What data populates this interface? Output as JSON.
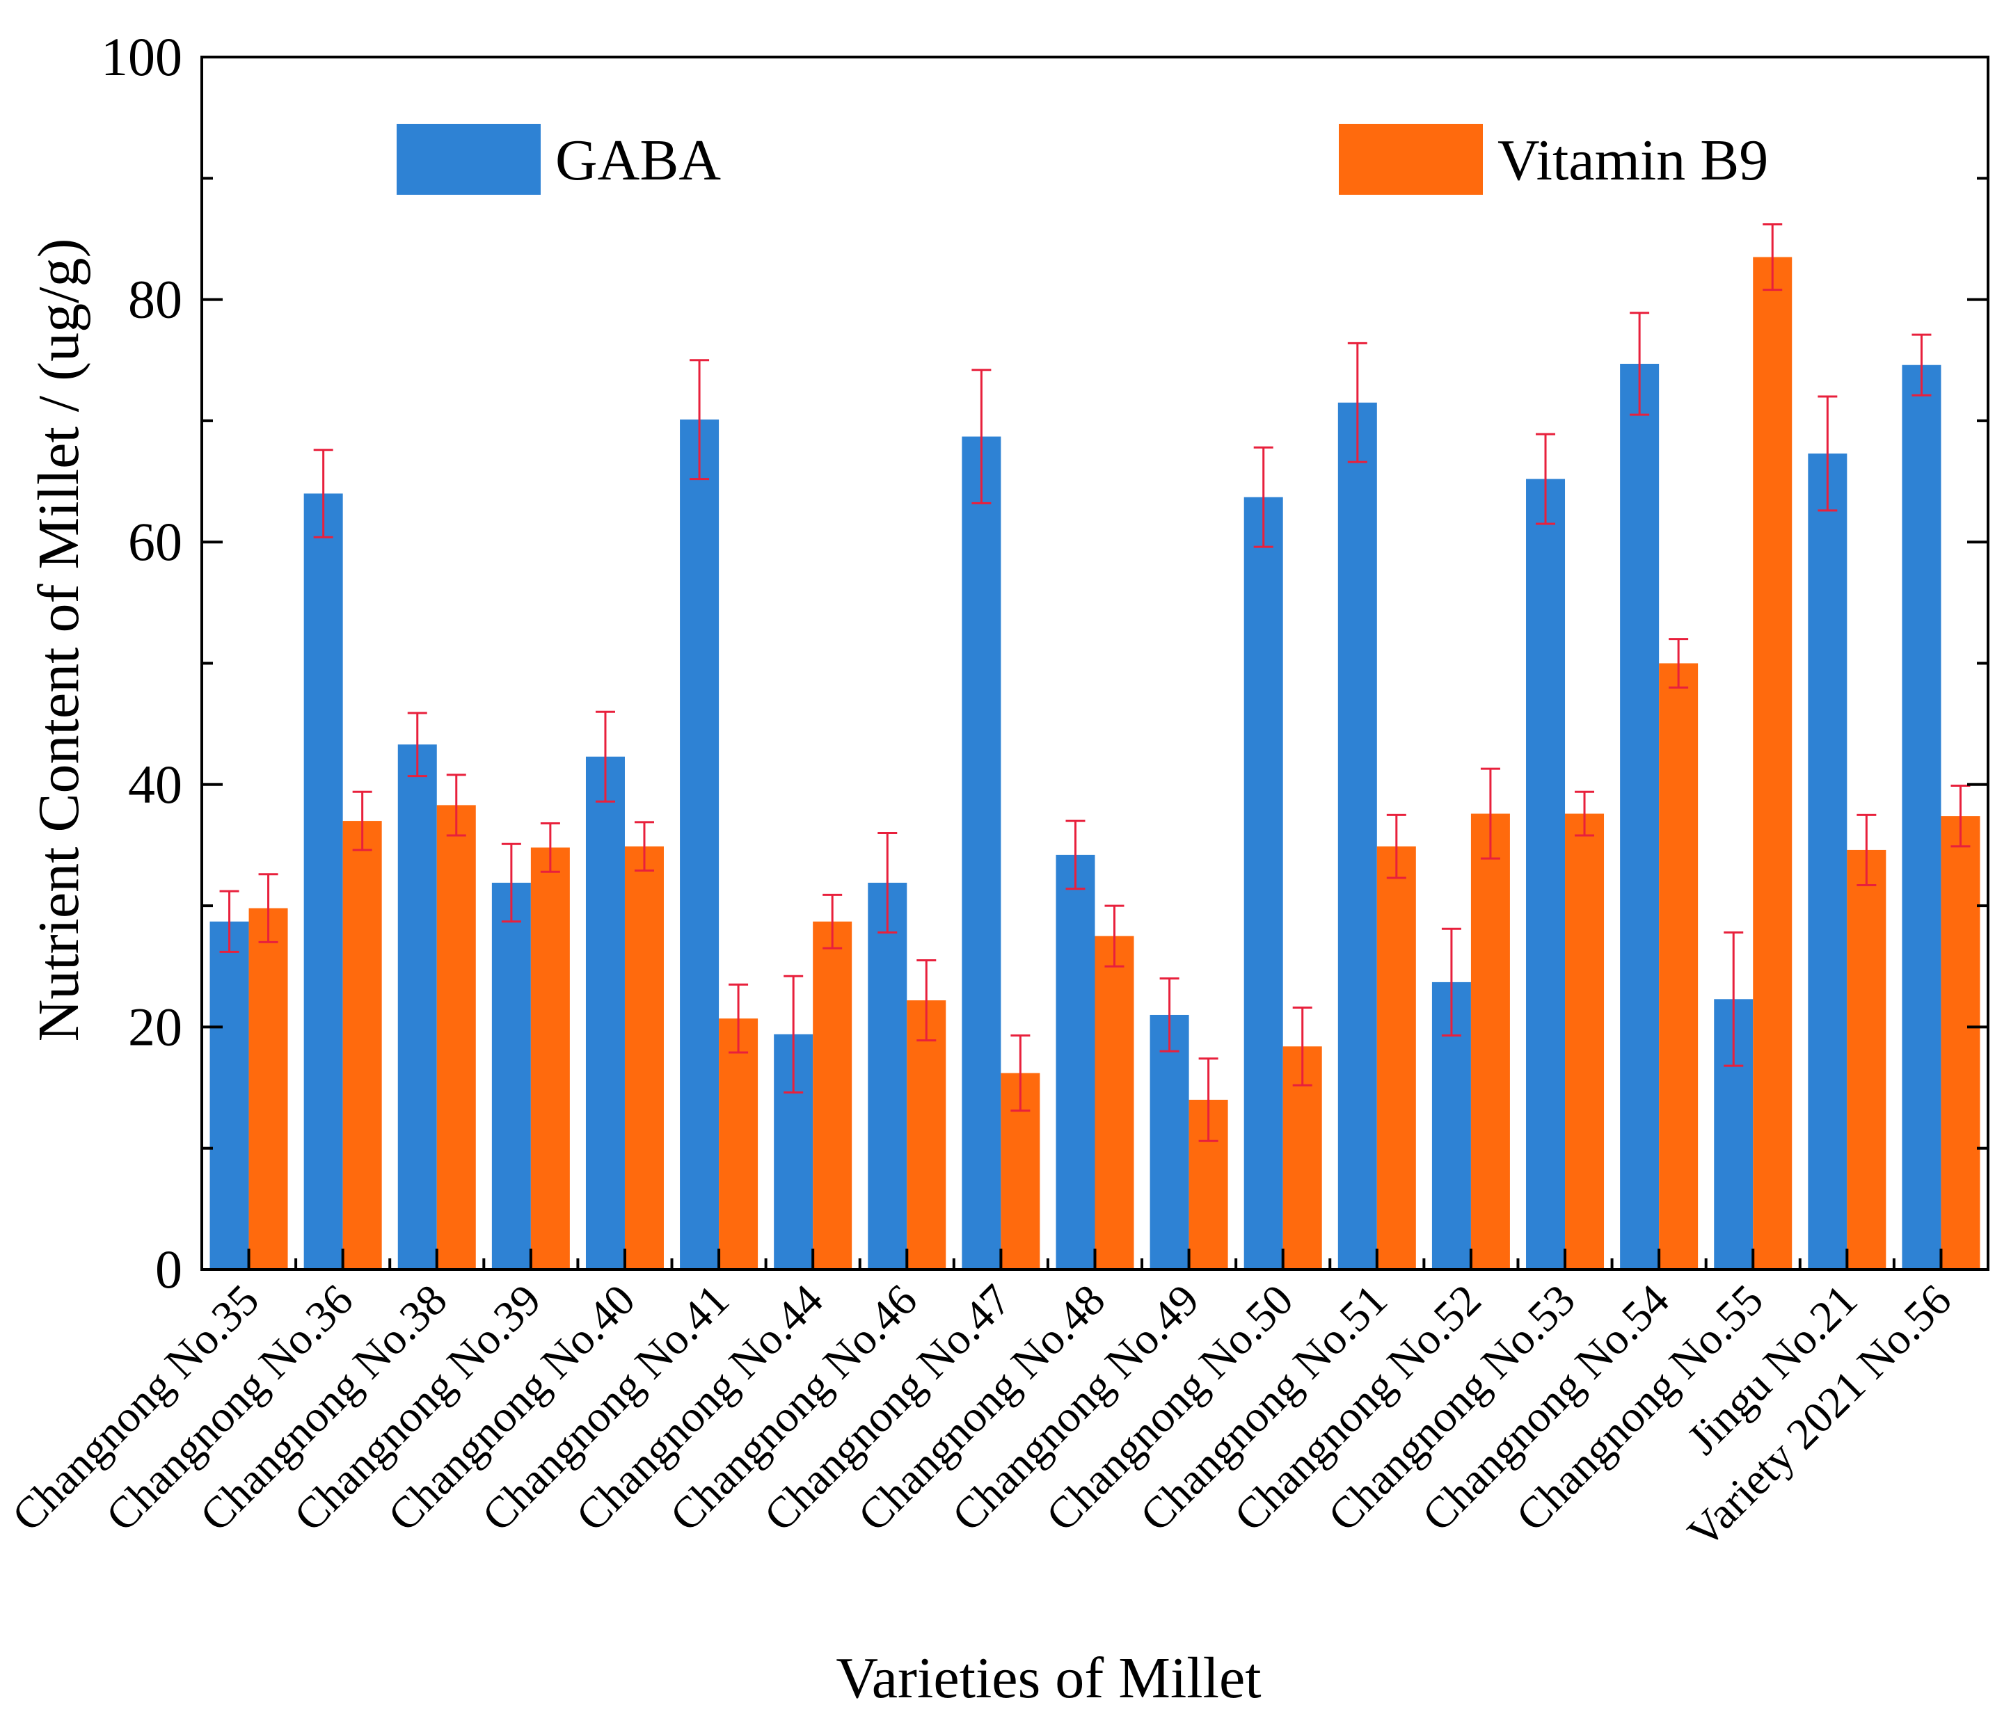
{
  "chart_data": {
    "type": "bar",
    "title": "",
    "xlabel": "Varieties of Millet",
    "ylabel": "Nutrient Content of Millet / (ug/g)",
    "ylim": [
      0,
      100
    ],
    "yticks": [
      0,
      20,
      40,
      60,
      80,
      100
    ],
    "ytick_labels": [
      "0",
      "20",
      "40",
      "60",
      "80",
      "100"
    ],
    "grid": false,
    "legend_position": "top",
    "categories": [
      "Changnong No.35",
      "Changnong No.36",
      "Changnong No.38",
      "Changnong No.39",
      "Changnong No.40",
      "Changnong No.41",
      "Changnong No.44",
      "Changnong No.46",
      "Changnong No.47",
      "Changnong No.48",
      "Changnong No.49",
      "Changnong No.50",
      "Changnong No.51",
      "Changnong No.52",
      "Changnong No.53",
      "Changnong No.54",
      "Changnong No.55",
      "Jingu No.21",
      "Variety 2021 No.56"
    ],
    "series": [
      {
        "name": "GABA",
        "color": "#2e82d4",
        "values": [
          28.7,
          64.0,
          43.3,
          31.9,
          42.3,
          70.1,
          19.4,
          31.9,
          68.7,
          34.2,
          21.0,
          63.7,
          71.5,
          23.7,
          65.2,
          74.7,
          22.3,
          67.3,
          74.6
        ],
        "errors": [
          2.5,
          3.6,
          2.6,
          3.2,
          3.7,
          4.9,
          4.8,
          4.1,
          5.5,
          2.8,
          3.0,
          4.1,
          4.9,
          4.4,
          3.7,
          4.2,
          5.5,
          4.7,
          2.5
        ]
      },
      {
        "name": "Vitamin B9",
        "color": "#ff6a0d",
        "values": [
          29.8,
          37.0,
          38.3,
          34.8,
          34.9,
          20.7,
          28.7,
          22.2,
          16.2,
          27.5,
          14.0,
          18.4,
          34.9,
          37.6,
          37.6,
          50.0,
          83.5,
          34.6,
          37.4
        ],
        "errors": [
          2.8,
          2.4,
          2.5,
          2.0,
          2.0,
          2.8,
          2.2,
          3.3,
          3.1,
          2.5,
          3.4,
          3.2,
          2.6,
          3.7,
          1.8,
          2.0,
          2.7,
          2.9,
          2.5
        ]
      }
    ],
    "error_bar_color": "#e8203c",
    "axis_color": "#000000"
  }
}
